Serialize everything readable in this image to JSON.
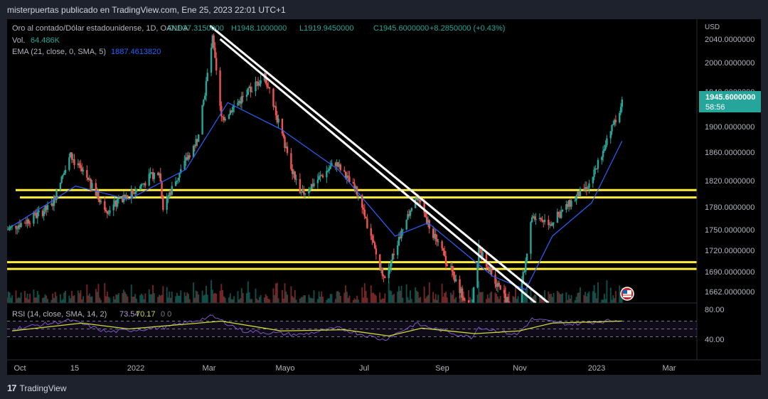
{
  "header": {
    "publisher_text": "misterpuertas publicado en TradingView.com, Ene 25, 2023 22:01 UTC+1"
  },
  "footer": {
    "brand": "TradingView"
  },
  "legend": {
    "symbol": "Oro al contado/Dólar estadounidense, 1D, OANDA",
    "open": "O1937.3150000",
    "high": "H1948.1000000",
    "low": "L1919.9450000",
    "close": "C1945.6000000",
    "change": "+8.2850000 (+0.43%)",
    "vol_label": "Vol.",
    "vol_value": "64.486K",
    "ema_label": "EMA (21, close, 0, SMA, 5)",
    "ema_value": "1887.4613820"
  },
  "rsi": {
    "label": "RSI (14, close, SMA, 14, 2)",
    "rsi_value": "73.54",
    "ma_value": "70.17",
    "extra": "0  0",
    "ticks": [
      "80.00",
      "40.00"
    ]
  },
  "price_tag": {
    "value": "1945.6000000",
    "countdown": "58:56"
  },
  "colors": {
    "up": "#26a69a",
    "down": "#ef5350",
    "ema": "#2962ff",
    "rsi": "#7e57c2",
    "rsi_ma": "#cddc39",
    "level": "#ffeb3b",
    "trend": "#ffffff",
    "tag": "#26a69a"
  },
  "chart_data": {
    "type": "candlestick",
    "currency": "USD",
    "y_ticks": [
      "2040.0000000",
      "2000.0000000",
      "1940.0000000",
      "1900.0000000",
      "1860.0000000",
      "1820.0000000",
      "1780.0000000",
      "1750.0000000",
      "1720.0000000",
      "1690.0000000",
      "1662.0000000"
    ],
    "x_ticks": [
      "Oct",
      "15",
      "2022",
      "Mar",
      "Mayo",
      "Jul",
      "Sep",
      "Nov",
      "2023",
      "Mar"
    ],
    "price_path": [
      {
        "date": "2021-09-27",
        "price": 1755
      },
      {
        "date": "2021-10-15",
        "price": 1770
      },
      {
        "date": "2021-11-01",
        "price": 1790
      },
      {
        "date": "2021-11-16",
        "price": 1865
      },
      {
        "date": "2021-12-15",
        "price": 1785
      },
      {
        "date": "2022-01-01",
        "price": 1805
      },
      {
        "date": "2022-01-25",
        "price": 1845
      },
      {
        "date": "2022-01-28",
        "price": 1790
      },
      {
        "date": "2022-02-25",
        "price": 1895
      },
      {
        "date": "2022-03-08",
        "price": 2040
      },
      {
        "date": "2022-03-15",
        "price": 1920
      },
      {
        "date": "2022-04-18",
        "price": 1985
      },
      {
        "date": "2022-05-16",
        "price": 1805
      },
      {
        "date": "2022-06-13",
        "price": 1855
      },
      {
        "date": "2022-06-30",
        "price": 1810
      },
      {
        "date": "2022-07-21",
        "price": 1680
      },
      {
        "date": "2022-08-15",
        "price": 1805
      },
      {
        "date": "2022-09-28",
        "price": 1630
      },
      {
        "date": "2022-10-04",
        "price": 1725
      },
      {
        "date": "2022-11-03",
        "price": 1620
      },
      {
        "date": "2022-11-15",
        "price": 1775
      },
      {
        "date": "2022-11-30",
        "price": 1765
      },
      {
        "date": "2022-12-31",
        "price": 1825
      },
      {
        "date": "2023-01-25",
        "price": 1945.6
      }
    ],
    "ema_path": [
      {
        "date": "2021-10-01",
        "price": 1760
      },
      {
        "date": "2021-11-20",
        "price": 1820
      },
      {
        "date": "2022-01-01",
        "price": 1800
      },
      {
        "date": "2022-02-15",
        "price": 1845
      },
      {
        "date": "2022-03-20",
        "price": 1945
      },
      {
        "date": "2022-05-01",
        "price": 1905
      },
      {
        "date": "2022-06-15",
        "price": 1845
      },
      {
        "date": "2022-07-30",
        "price": 1745
      },
      {
        "date": "2022-08-25",
        "price": 1765
      },
      {
        "date": "2022-10-15",
        "price": 1685
      },
      {
        "date": "2022-11-10",
        "price": 1665
      },
      {
        "date": "2022-12-01",
        "price": 1745
      },
      {
        "date": "2023-01-01",
        "price": 1795
      },
      {
        "date": "2023-01-25",
        "price": 1887.46
      }
    ],
    "horizontal_levels": [
      1814,
      1803,
      1706,
      1696
    ],
    "trendlines": [
      {
        "start": {
          "date": "2022-03-06",
          "price": 2060
        },
        "end": {
          "date": "2022-11-28",
          "price": 1645
        }
      },
      {
        "start": {
          "date": "2022-03-14",
          "price": 2040
        },
        "end": {
          "date": "2022-11-18",
          "price": 1645
        }
      }
    ],
    "rsi_path": [
      {
        "date": "2021-10-01",
        "value": 50
      },
      {
        "date": "2021-11-16",
        "value": 72
      },
      {
        "date": "2021-12-15",
        "value": 42
      },
      {
        "date": "2022-02-01",
        "value": 55
      },
      {
        "date": "2022-03-08",
        "value": 82
      },
      {
        "date": "2022-04-01",
        "value": 45
      },
      {
        "date": "2022-05-16",
        "value": 35
      },
      {
        "date": "2022-06-15",
        "value": 52
      },
      {
        "date": "2022-07-21",
        "value": 22
      },
      {
        "date": "2022-08-15",
        "value": 63
      },
      {
        "date": "2022-09-28",
        "value": 28
      },
      {
        "date": "2022-10-04",
        "value": 55
      },
      {
        "date": "2022-11-03",
        "value": 35
      },
      {
        "date": "2022-11-15",
        "value": 75
      },
      {
        "date": "2022-12-15",
        "value": 62
      },
      {
        "date": "2023-01-25",
        "value": 73.54
      }
    ],
    "rsi_ma_path": [
      {
        "date": "2021-10-01",
        "value": 45
      },
      {
        "date": "2021-11-25",
        "value": 65
      },
      {
        "date": "2022-01-01",
        "value": 50
      },
      {
        "date": "2022-03-15",
        "value": 70
      },
      {
        "date": "2022-05-01",
        "value": 45
      },
      {
        "date": "2022-06-20",
        "value": 48
      },
      {
        "date": "2022-07-25",
        "value": 32
      },
      {
        "date": "2022-08-20",
        "value": 52
      },
      {
        "date": "2022-10-01",
        "value": 38
      },
      {
        "date": "2022-11-05",
        "value": 45
      },
      {
        "date": "2022-12-01",
        "value": 65
      },
      {
        "date": "2023-01-25",
        "value": 70.17
      }
    ]
  }
}
